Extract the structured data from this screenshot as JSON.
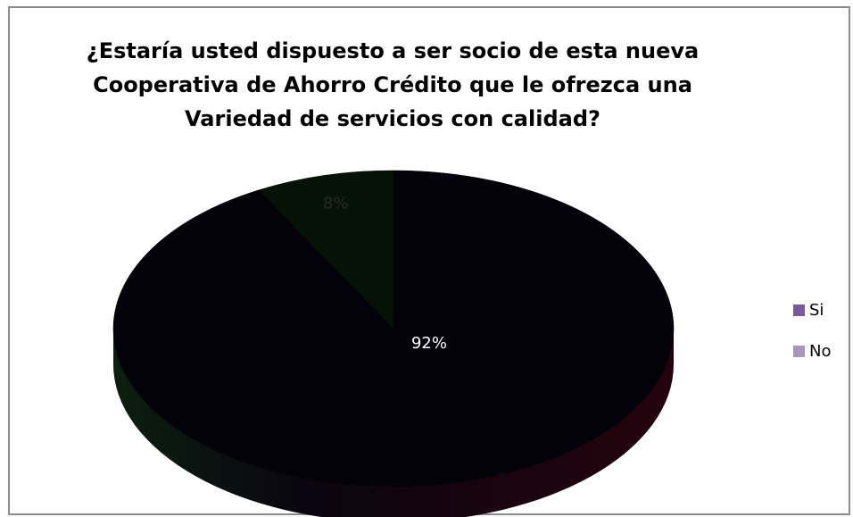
{
  "chart_data": {
    "type": "pie",
    "title": "¿Estaría usted dispuesto a ser socio de esta nueva Cooperativa de Ahorro Crédito que le ofrezca una Variedad de servicios con calidad?",
    "categories": [
      "Si",
      "No"
    ],
    "values": [
      92,
      8
    ],
    "data_labels": [
      "92%",
      "8%"
    ],
    "legend_position": "right",
    "slice_color": "#03020b",
    "legend_colors": [
      "#7b5a9b",
      "#a896be"
    ],
    "label_color": "#ffffff"
  },
  "chart": {
    "title_lines": [
      "¿Estaría usted dispuesto a ser socio de esta nueva",
      "Cooperativa de Ahorro Crédito que le ofrezca una",
      "Variedad de servicios con calidad?"
    ]
  },
  "legend": {
    "items": [
      {
        "label": "Si",
        "color": "#7b5a9b"
      },
      {
        "label": "No",
        "color": "#a896be"
      }
    ]
  }
}
